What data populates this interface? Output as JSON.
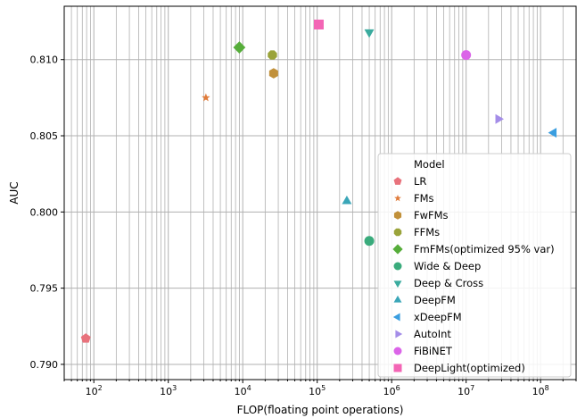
{
  "chart_data": {
    "type": "scatter",
    "xlabel": "FLOP(floating point operations)",
    "ylabel": "AUC",
    "xscale": "log",
    "xlim": [
      40,
      300000000
    ],
    "ylim": [
      0.789,
      0.8135
    ],
    "grid": "major-and-minor",
    "yticks": [
      0.79,
      0.795,
      0.8,
      0.805,
      0.81
    ],
    "ytick_labels": [
      "0.790",
      "0.795",
      "0.800",
      "0.805",
      "0.810"
    ],
    "xticks": [
      100,
      1000,
      10000,
      100000,
      1000000,
      10000000,
      100000000
    ],
    "xtick_labels": [
      {
        "base": "10",
        "exp": "2"
      },
      {
        "base": "10",
        "exp": "3"
      },
      {
        "base": "10",
        "exp": "4"
      },
      {
        "base": "10",
        "exp": "5"
      },
      {
        "base": "10",
        "exp": "6"
      },
      {
        "base": "10",
        "exp": "7"
      },
      {
        "base": "10",
        "exp": "8"
      }
    ],
    "legend": {
      "title": "Model",
      "placement": "lower-right"
    },
    "series": [
      {
        "name": "LR",
        "marker": "pentagon",
        "color": "#e8727c",
        "x": 78,
        "y": 0.7917
      },
      {
        "name": "FMs",
        "marker": "star",
        "color": "#e07b3a",
        "x": 3200,
        "y": 0.8075
      },
      {
        "name": "FwFMs",
        "marker": "hexagon",
        "color": "#c1903a",
        "x": 26000,
        "y": 0.8091
      },
      {
        "name": "FFMs",
        "marker": "octagon",
        "color": "#9aa33a",
        "x": 25000,
        "y": 0.8103
      },
      {
        "name": "FmFMs(optimized 95% var)",
        "marker": "diamond",
        "color": "#56ad3a",
        "x": 9000,
        "y": 0.8108
      },
      {
        "name": "Wide & Deep",
        "marker": "circle",
        "color": "#3aab7c",
        "x": 500000,
        "y": 0.7981
      },
      {
        "name": "Deep & Cross",
        "marker": "triangle-down",
        "color": "#3aab9e",
        "x": 500000,
        "y": 0.8118
      },
      {
        "name": "DeepFM",
        "marker": "triangle-up",
        "color": "#3aa6b8",
        "x": 250000,
        "y": 0.8007
      },
      {
        "name": "xDeepFM",
        "marker": "triangle-left",
        "color": "#3a9ee0",
        "x": 150000000,
        "y": 0.8052
      },
      {
        "name": "AutoInt",
        "marker": "triangle-right",
        "color": "#a48de8",
        "x": 27000000,
        "y": 0.8061
      },
      {
        "name": "FiBiNET",
        "marker": "circle",
        "color": "#db64e8",
        "x": 10000000,
        "y": 0.8103
      },
      {
        "name": "DeepLight(optimized)",
        "marker": "square",
        "color": "#f365b5",
        "x": 105000,
        "y": 0.8123
      }
    ]
  }
}
